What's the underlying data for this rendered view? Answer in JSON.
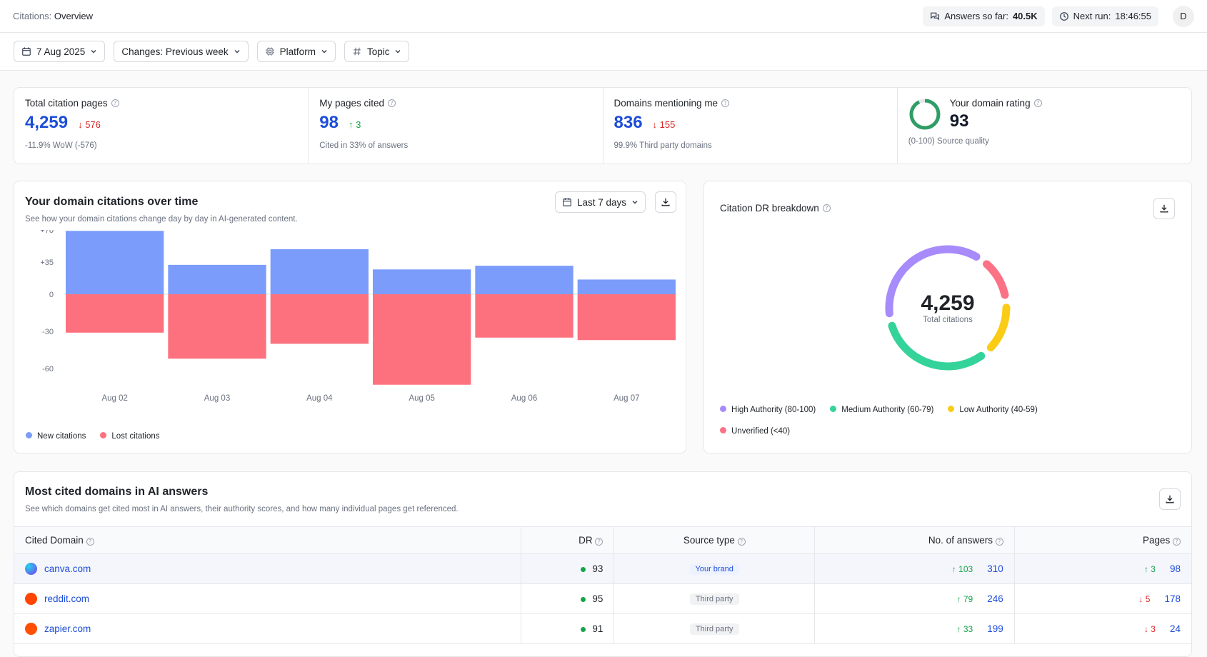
{
  "header": {
    "section": "Citations:",
    "page": "Overview",
    "answers_label": "Answers so far:",
    "answers_value": "40.5K",
    "next_run_label": "Next run:",
    "next_run_value": "18:46:55",
    "avatar_initial": "D"
  },
  "filters": {
    "date": "7 Aug 2025",
    "changes": "Changes: Previous week",
    "platform": "Platform",
    "topic": "Topic"
  },
  "kpis": {
    "total": {
      "label": "Total citation pages",
      "value": "4,259",
      "delta": "576",
      "sub": "-11.9% WoW (-576)"
    },
    "mine": {
      "label": "My pages cited",
      "value": "98",
      "delta": "3",
      "sub": "Cited in 33% of answers"
    },
    "domains": {
      "label": "Domains mentioning me",
      "value": "836",
      "delta": "155",
      "sub": "99.9% Third party domains"
    },
    "rating": {
      "label": "Your domain rating",
      "value": "93",
      "sub": "(0-100) Source quality",
      "fraction": 0.93
    }
  },
  "citations_chart": {
    "title": "Your domain citations over time",
    "description": "See how your domain citations change day by day in AI-generated content.",
    "range_label": "Last 7 days",
    "legend_new": "New citations",
    "legend_lost": "Lost citations"
  },
  "chart_data": {
    "type": "bar",
    "categories": [
      "Aug 02",
      "Aug 03",
      "Aug 04",
      "Aug 05",
      "Aug 06",
      "Aug 07"
    ],
    "series": [
      {
        "name": "New citations",
        "values": [
          69,
          32,
          49,
          27,
          31,
          16
        ]
      },
      {
        "name": "Lost citations",
        "values": [
          -31,
          -52,
          -40,
          -73,
          -35,
          -37
        ]
      }
    ],
    "y_ticks": [
      "+70",
      "+35",
      "0",
      "-30",
      "-60"
    ],
    "ylim": [
      -72,
      70
    ],
    "colors": {
      "new": "#7b9cfb",
      "lost": "#fd717f"
    }
  },
  "dr_breakdown": {
    "title": "Citation DR breakdown",
    "total": "4,259",
    "total_label": "Total citations",
    "segments": [
      {
        "name": "High Authority (80-100)",
        "color": "#a78bfa",
        "share": 0.35
      },
      {
        "name": "Unverified (<40)",
        "color": "#fb7185",
        "share": 0.1
      },
      {
        "name": "Low Authority (40-59)",
        "color": "#facc15",
        "share": 0.12
      },
      {
        "name": "Medium Authority (60-79)",
        "color": "#34d399",
        "share": 0.3
      }
    ],
    "legend": [
      "High Authority (80-100)",
      "Medium Authority (60-79)",
      "Low Authority (40-59)",
      "Unverified (<40)"
    ]
  },
  "domains_table": {
    "title": "Most cited domains in AI answers",
    "description": "See which domains get cited most in AI answers, their authority scores, and how many individual pages get referenced.",
    "columns": [
      "Cited Domain",
      "DR",
      "Source type",
      "No. of answers",
      "Pages"
    ],
    "rows": [
      {
        "domain": "canva.com",
        "dr": "93",
        "source": "Your brand",
        "answers_delta": "103",
        "answers": "310",
        "pages_delta": "3",
        "pages": "98",
        "favicon": "#7c3aed"
      },
      {
        "domain": "reddit.com",
        "dr": "95",
        "source": "Third party",
        "answers_delta": "79",
        "answers": "246",
        "pages_delta": "5",
        "pages": "178",
        "favicon": "#ff4500"
      },
      {
        "domain": "zapier.com",
        "dr": "91",
        "source": "Third party",
        "answers_delta": "33",
        "answers": "199",
        "pages_delta": "3",
        "pages": "24",
        "favicon": "#ff4f00"
      }
    ]
  }
}
